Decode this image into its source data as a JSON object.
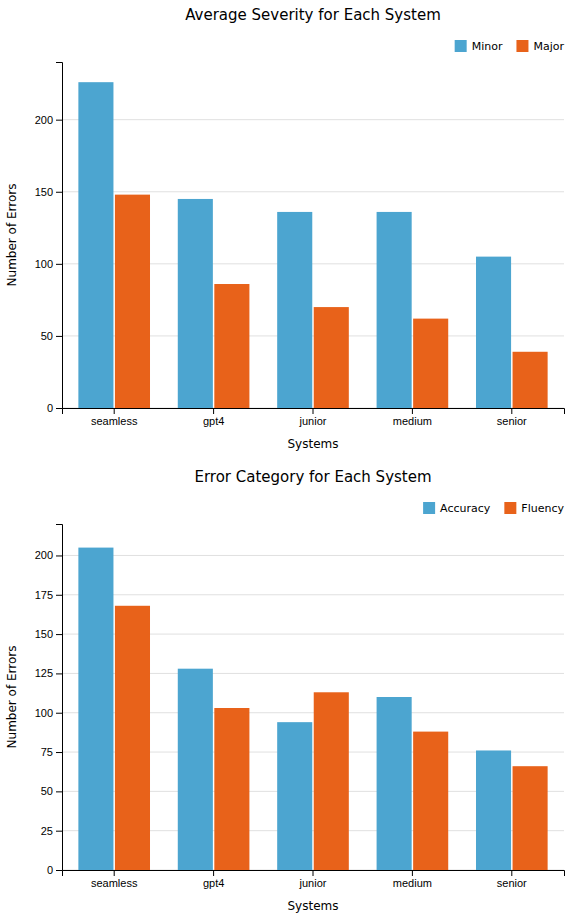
{
  "chart_data": [
    {
      "type": "bar",
      "title": "Average Severity for Each System",
      "xlabel": "Systems",
      "ylabel": "Number of Errors",
      "categories": [
        "seamless",
        "gpt4",
        "junior",
        "medium",
        "senior"
      ],
      "series": [
        {
          "name": "Minor",
          "color": "#4CA5D0",
          "values": [
            226,
            145,
            136,
            136,
            105
          ]
        },
        {
          "name": "Major",
          "color": "#E8621A",
          "values": [
            148,
            86,
            70,
            62,
            39
          ]
        }
      ],
      "ylim": [
        0,
        240
      ],
      "yticks": [
        0,
        50,
        100,
        150,
        200
      ],
      "grid": true,
      "legend": "upper right"
    },
    {
      "type": "bar",
      "title": "Error Category for Each System",
      "xlabel": "Systems",
      "ylabel": "Number of Errors",
      "categories": [
        "seamless",
        "gpt4",
        "junior",
        "medium",
        "senior"
      ],
      "series": [
        {
          "name": "Accuracy",
          "color": "#4CA5D0",
          "values": [
            205,
            128,
            94,
            110,
            76
          ]
        },
        {
          "name": "Fluency",
          "color": "#E8621A",
          "values": [
            168,
            103,
            113,
            88,
            66
          ]
        }
      ],
      "ylim": [
        0,
        220
      ],
      "yticks": [
        0,
        25,
        50,
        75,
        100,
        125,
        150,
        175,
        200
      ],
      "grid": true,
      "legend": "upper right"
    }
  ]
}
